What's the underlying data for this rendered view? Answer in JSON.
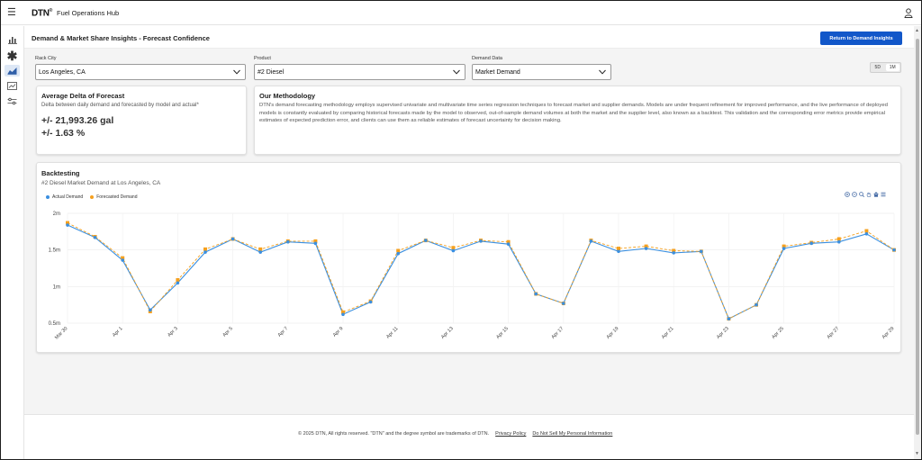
{
  "app": {
    "logo": "DTN",
    "logo_mark": "®",
    "title": "Fuel Operations Hub"
  },
  "sidebar": {
    "items": [
      {
        "icon": "bar-chart-icon",
        "active": false
      },
      {
        "icon": "asterisk-icon",
        "active": false
      },
      {
        "icon": "area-chart-icon",
        "active": true
      },
      {
        "icon": "trend-chart-icon",
        "active": false
      },
      {
        "icon": "sliders-icon",
        "active": false
      }
    ]
  },
  "page": {
    "title": "Demand & Market Share Insights - Forecast Confidence",
    "return_button": "Return to Demand Insights"
  },
  "filters": {
    "rack_city": {
      "label": "Rack City",
      "value": "Los Angeles, CA"
    },
    "product": {
      "label": "Product",
      "value": "#2 Diesel"
    },
    "demand_data": {
      "label": "Demand Data",
      "value": "Market Demand"
    }
  },
  "range": {
    "options": [
      "5D",
      "1M"
    ],
    "selected": "1M"
  },
  "delta": {
    "title": "Average Delta of Forecast",
    "subtitle": "Delta between daily demand and forecasted by model and actual*",
    "gallons": "+/- 21,993.26 gal",
    "percent": "+/- 1.63 %"
  },
  "methodology": {
    "title": "Our Methodology",
    "text": "DTN's demand forecasting methodology employs supervised univariate and multivariate time series regression techniques to forecast market and supplier demands. Models are under frequent refinement for improved performance, and the live performance of deployed models is constantly evaluated by comparing historical forecasts made by the model to observed, out-of-sample demand volumes at both the market and the supplier level, also known as a backtest. This validation and the corresponding error metrics provide empirical estimates of expected prediction error, and clients can use them as reliable estimates of forecast uncertainty for decision making."
  },
  "backtesting": {
    "title": "Backtesting",
    "subtitle": "#2 Diesel Market Demand at Los Angeles, CA"
  },
  "chart_data": {
    "type": "line",
    "title": "",
    "xlabel": "",
    "ylabel": "",
    "x": [
      "Mar 30",
      "Mar 31",
      "Apr 1",
      "Apr 2",
      "Apr 3",
      "Apr 4",
      "Apr 5",
      "Apr 6",
      "Apr 7",
      "Apr 8",
      "Apr 9",
      "Apr 10",
      "Apr 11",
      "Apr 12",
      "Apr 13",
      "Apr 14",
      "Apr 15",
      "Apr 16",
      "Apr 17",
      "Apr 18",
      "Apr 19",
      "Apr 20",
      "Apr 21",
      "Apr 22",
      "Apr 23",
      "Apr 24",
      "Apr 25",
      "Apr 26",
      "Apr 27",
      "Apr 28",
      "Apr 29"
    ],
    "x_tick_labels": [
      "Mar 30",
      "Apr 1",
      "Apr 3",
      "Apr 5",
      "Apr 7",
      "Apr 9",
      "Apr 11",
      "Apr 13",
      "Apr 15",
      "Apr 17",
      "Apr 19",
      "Apr 21",
      "Apr 23",
      "Apr 25",
      "Apr 27",
      "Apr 29"
    ],
    "y_ticks": [
      0.5,
      1,
      1.5,
      2
    ],
    "y_tick_labels": [
      "0.5m",
      "1m",
      "1.5m",
      "2m"
    ],
    "ylim": [
      0.5,
      2.0
    ],
    "unit": "millions of gallons",
    "series": [
      {
        "name": "Actual Demand",
        "color": "#3a8fe0",
        "values": [
          1.84,
          1.67,
          1.36,
          0.68,
          1.05,
          1.47,
          1.65,
          1.47,
          1.61,
          1.59,
          0.62,
          0.79,
          1.45,
          1.63,
          1.49,
          1.62,
          1.58,
          0.9,
          0.77,
          1.62,
          1.48,
          1.52,
          1.46,
          1.48,
          0.56,
          0.75,
          1.52,
          1.59,
          1.61,
          1.72,
          1.5
        ]
      },
      {
        "name": "Forecasted Demand",
        "color": "#f5a01e",
        "values": [
          1.87,
          1.68,
          1.39,
          0.66,
          1.09,
          1.51,
          1.65,
          1.51,
          1.62,
          1.62,
          0.65,
          0.8,
          1.49,
          1.63,
          1.53,
          1.63,
          1.61,
          0.9,
          0.77,
          1.63,
          1.52,
          1.55,
          1.49,
          1.48,
          0.56,
          0.75,
          1.55,
          1.6,
          1.65,
          1.76,
          1.5
        ]
      }
    ],
    "legend_position": "top-left",
    "grid": true
  },
  "footer": {
    "copyright": "© 2025 DTN, All rights reserved. \"DTN\" and the degree symbol are trademarks of DTN.",
    "privacy_link": "Privacy Policy",
    "donotsell_link": "Do Not Sell My Personal Information"
  }
}
